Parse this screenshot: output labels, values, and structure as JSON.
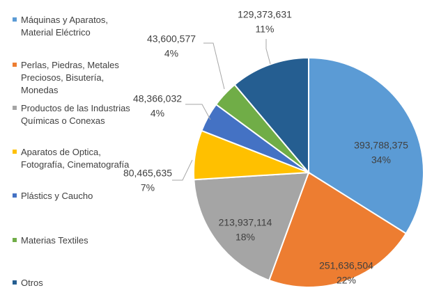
{
  "chart_data": {
    "type": "pie",
    "categories": [
      "Máquinas y Aparatos, Material Eléctrico",
      "Perlas, Piedras, Metales Preciosos, Bisutería, Monedas",
      "Productos de las Industrias Químicas o Conexas",
      "Aparatos de Optica, Fotografía, Cinematografía",
      "Plástics y Caucho",
      "Materias Textiles",
      "Otros"
    ],
    "values": [
      393788375,
      251636504,
      213937114,
      80465635,
      48366032,
      43600577,
      129373631
    ],
    "value_labels": [
      "393,788,375",
      "251,636,504",
      "213,937,114",
      "80,465,635",
      "48,366,032",
      "43,600,577",
      "129,373,631"
    ],
    "percent_labels": [
      "34%",
      "22%",
      "18%",
      "7%",
      "4%",
      "4%",
      "11%"
    ],
    "colors": [
      "#5b9bd5",
      "#ed7d31",
      "#a5a5a5",
      "#ffc000",
      "#4472c4",
      "#70ad47",
      "#255e91"
    ],
    "legend": "left"
  }
}
